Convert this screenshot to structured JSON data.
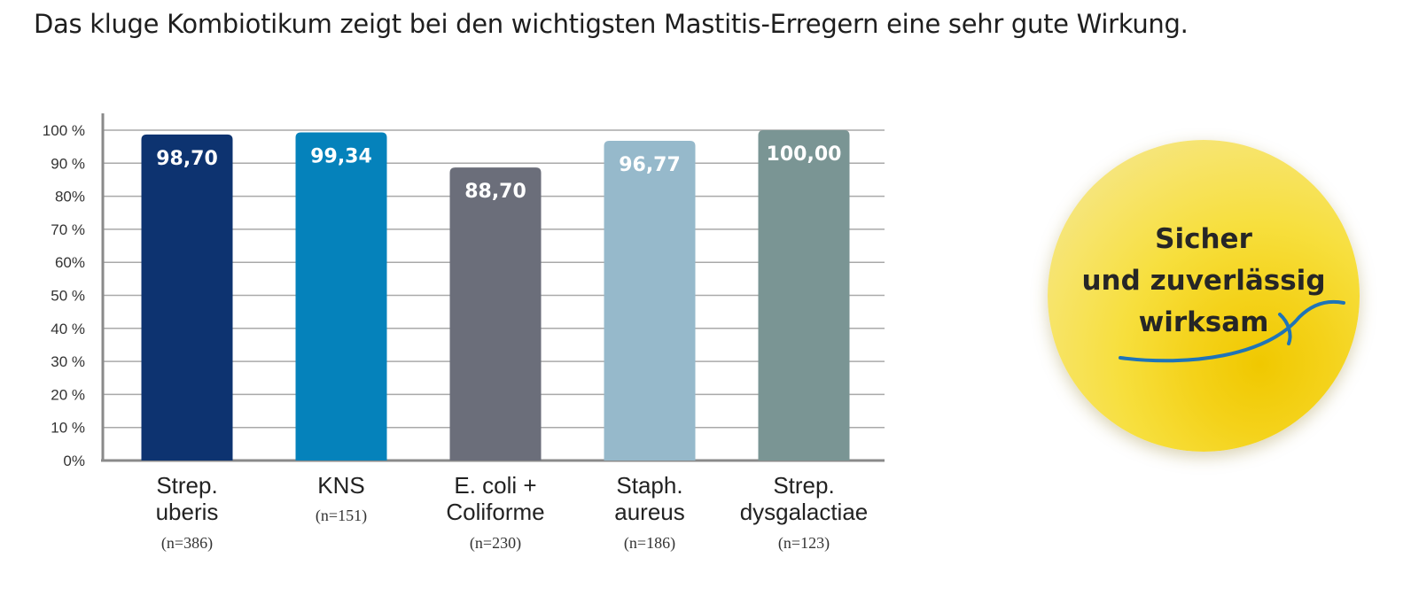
{
  "headline": "Das kluge Kombiotikum zeigt bei den wichtigsten Mastitis-Erregern eine sehr gute Wirkung.",
  "badge": {
    "line1": "Sicher",
    "line2": "und zuverlässig",
    "line3": "wirksam"
  },
  "colors": {
    "bar1": "#0d3370",
    "bar2": "#0582bb",
    "bar3": "#6b6e7a",
    "bar4": "#96b9cb",
    "bar5": "#7a9594",
    "grid": "#a9a9a9",
    "swoosh": "#1f74b8"
  },
  "chart_data": {
    "type": "bar",
    "title": "",
    "xlabel": "",
    "ylabel": "",
    "ylim": [
      0,
      100
    ],
    "grid": true,
    "yticks": [
      "0%",
      "10 %",
      "20 %",
      "30 %",
      "40 %",
      "50 %",
      "60%",
      "70 %",
      "80%",
      "90 %",
      "100 %"
    ],
    "categories": [
      {
        "lines": [
          "Strep.",
          "uberis"
        ],
        "n": "(n=386)"
      },
      {
        "lines": [
          "KNS"
        ],
        "n": "(n=151)"
      },
      {
        "lines": [
          "E. coli +",
          "Coliforme"
        ],
        "n": "(n=230)"
      },
      {
        "lines": [
          "Staph.",
          "aureus"
        ],
        "n": "(n=186)"
      },
      {
        "lines": [
          "Strep.",
          "dysgalactiae"
        ],
        "n": "(n=123)"
      }
    ],
    "values": [
      98.7,
      99.34,
      88.7,
      96.77,
      100.0
    ],
    "labels": [
      "98,70",
      "99,34",
      "88,70",
      "96,77",
      "100,00"
    ]
  }
}
